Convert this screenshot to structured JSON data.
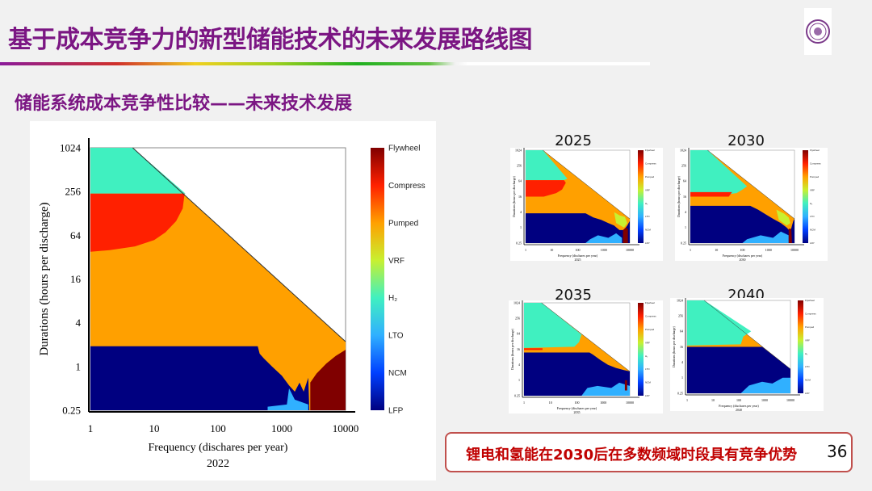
{
  "slide": {
    "title": "基于成本竞争力的新型储能技术的未来发展路线图",
    "subtitle": "储能系统成本竞争性比较——未来技术发展",
    "callout": "锂电和氢能在2030后在多数频域时段具有竞争优势",
    "page_number": "36",
    "title_color": "#7b1683",
    "callout_color": "#c00000"
  },
  "year_labels": [
    "2025",
    "2030",
    "2035",
    "2040"
  ],
  "legend": [
    {
      "label": "Flywheel",
      "color": "#800000"
    },
    {
      "label": "Compress",
      "color": "#ff2000"
    },
    {
      "label": "Pumped",
      "color": "#ffa000"
    },
    {
      "label": "VRF",
      "color": "#c8f030"
    },
    {
      "label": "H₂",
      "color": "#40f0c0"
    },
    {
      "label": "LTO",
      "color": "#30b0ff"
    },
    {
      "label": "NCM",
      "color": "#0040ff"
    },
    {
      "label": "LFP",
      "color": "#000080"
    }
  ],
  "chart_data": [
    {
      "type": "heatmap",
      "year": "2022",
      "xlabel": "Frequency (dischares per year)",
      "ylabel": "Durations (hours per discharge)",
      "xscale": "log",
      "yscale": "log2",
      "xlim": [
        1,
        10000
      ],
      "ylim": [
        0.25,
        1024
      ],
      "xticks": [
        "1",
        "10",
        "100",
        "1000",
        "10000"
      ],
      "yticks": [
        "1024",
        "256",
        "64",
        "16",
        "4",
        "1",
        "0.25"
      ],
      "regions": [
        {
          "tech": "Pumped",
          "points": [
            [
              1,
              1024
            ],
            [
              4.6,
              1024
            ],
            [
              10000,
              2.2
            ],
            [
              10000,
              0.25
            ],
            [
              1,
              0.25
            ]
          ]
        },
        {
          "tech": "H₂",
          "points": [
            [
              1,
              1024
            ],
            [
              4.6,
              1024
            ],
            [
              31,
              240
            ],
            [
              1,
              240
            ]
          ]
        },
        {
          "tech": "Compress",
          "points": [
            [
              1,
              240
            ],
            [
              30,
              240
            ],
            [
              28,
              150
            ],
            [
              22,
              100
            ],
            [
              15,
              70
            ],
            [
              10,
              55
            ],
            [
              5,
              45
            ],
            [
              2,
              40
            ],
            [
              1,
              38
            ]
          ]
        },
        {
          "tech": "LFP",
          "points": [
            [
              1,
              1.9
            ],
            [
              420,
              1.9
            ],
            [
              450,
              1.5
            ],
            [
              520,
              1.3
            ],
            [
              700,
              1.0
            ],
            [
              1000,
              0.75
            ],
            [
              1300,
              0.55
            ],
            [
              1600,
              0.45
            ],
            [
              1900,
              0.6
            ],
            [
              2200,
              0.45
            ],
            [
              2600,
              0.7
            ],
            [
              2700,
              0.25
            ],
            [
              1,
              0.25
            ]
          ]
        },
        {
          "tech": "LTO",
          "points": [
            [
              600,
              0.25
            ],
            [
              600,
              0.28
            ],
            [
              1200,
              0.3
            ],
            [
              1300,
              0.5
            ],
            [
              1600,
              0.35
            ],
            [
              2600,
              0.3
            ],
            [
              2600,
              0.25
            ]
          ]
        },
        {
          "tech": "Flywheel",
          "points": [
            [
              2800,
              0.25
            ],
            [
              2800,
              0.6
            ],
            [
              3500,
              0.8
            ],
            [
              5000,
              1.1
            ],
            [
              7000,
              1.4
            ],
            [
              10000,
              1.7
            ],
            [
              10000,
              0.25
            ]
          ]
        }
      ]
    },
    {
      "type": "heatmap",
      "year": "2025",
      "xlabel": "Frequency (dischares per year)",
      "ylabel": "Durations (hours per discharge)",
      "xscale": "log",
      "yscale": "log2",
      "xlim": [
        1,
        10000
      ],
      "ylim": [
        0.25,
        1024
      ],
      "xticks": [
        "1",
        "10",
        "100",
        "1000",
        "10000"
      ],
      "yticks": [
        "1024",
        "256",
        "64",
        "16",
        "4",
        "1",
        "0.25"
      ],
      "regions": [
        {
          "tech": "Pumped",
          "points": [
            [
              1,
              1024
            ],
            [
              4.6,
              1024
            ],
            [
              10000,
              2.2
            ],
            [
              10000,
              0.25
            ],
            [
              1,
              0.25
            ]
          ]
        },
        {
          "tech": "H₂",
          "points": [
            [
              1,
              1024
            ],
            [
              4.6,
              1024
            ],
            [
              40,
              80
            ],
            [
              30,
              70
            ],
            [
              1,
              70
            ]
          ]
        },
        {
          "tech": "Compress",
          "points": [
            [
              1,
              70
            ],
            [
              30,
              70
            ],
            [
              35,
              55
            ],
            [
              25,
              30
            ],
            [
              15,
              22
            ],
            [
              5,
              16
            ],
            [
              1,
              16
            ]
          ]
        },
        {
          "tech": "VRF",
          "points": [
            [
              2500,
              4
            ],
            [
              4000,
              3
            ],
            [
              6500,
              2.6
            ],
            [
              8000,
              1.5
            ],
            [
              6000,
              1
            ],
            [
              3000,
              1.5
            ]
          ]
        },
        {
          "tech": "LFP",
          "points": [
            [
              1,
              3.6
            ],
            [
              200,
              3.6
            ],
            [
              400,
              2.5
            ],
            [
              800,
              2
            ],
            [
              1500,
              1.5
            ],
            [
              2500,
              1.2
            ],
            [
              4000,
              0.8
            ],
            [
              6000,
              0.8
            ],
            [
              8000,
              1.2
            ],
            [
              9000,
              1.5
            ],
            [
              10000,
              1.8
            ],
            [
              10000,
              0.25
            ],
            [
              1,
              0.25
            ]
          ]
        },
        {
          "tech": "LTO",
          "points": [
            [
              200,
              0.25
            ],
            [
              300,
              0.35
            ],
            [
              600,
              0.5
            ],
            [
              1500,
              0.4
            ],
            [
              3000,
              0.6
            ],
            [
              5000,
              0.4
            ],
            [
              5000,
              0.25
            ]
          ]
        },
        {
          "tech": "Flywheel",
          "points": [
            [
              5500,
              0.25
            ],
            [
              5500,
              0.8
            ],
            [
              7000,
              1.0
            ],
            [
              8500,
              0.9
            ],
            [
              8500,
              0.25
            ]
          ]
        }
      ]
    },
    {
      "type": "heatmap",
      "year": "2030",
      "xlabel": "Frequency (dischares per year)",
      "ylabel": "Durations (hours per discharge)",
      "xscale": "log",
      "yscale": "log2",
      "xlim": [
        1,
        10000
      ],
      "ylim": [
        0.25,
        1024
      ],
      "xticks": [
        "1",
        "10",
        "100",
        "1000",
        "10000"
      ],
      "yticks": [
        "1024",
        "256",
        "64",
        "16",
        "4",
        "1",
        "0.25"
      ],
      "regions": [
        {
          "tech": "Pumped",
          "points": [
            [
              1,
              1024
            ],
            [
              4.6,
              1024
            ],
            [
              10000,
              2.2
            ],
            [
              10000,
              0.25
            ],
            [
              1,
              0.25
            ]
          ]
        },
        {
          "tech": "H₂",
          "points": [
            [
              1,
              1024
            ],
            [
              4.6,
              1024
            ],
            [
              150,
              40
            ],
            [
              100,
              30
            ],
            [
              60,
              22
            ],
            [
              30,
              20
            ],
            [
              1,
              20
            ]
          ]
        },
        {
          "tech": "Compress",
          "points": [
            [
              1,
              24
            ],
            [
              40,
              24
            ],
            [
              30,
              16
            ],
            [
              1,
              16
            ]
          ]
        },
        {
          "tech": "VRF",
          "points": [
            [
              2000,
              5
            ],
            [
              4000,
              3.5
            ],
            [
              6000,
              2.5
            ],
            [
              7000,
              1.5
            ],
            [
              5000,
              1.2
            ],
            [
              2500,
              2
            ]
          ]
        },
        {
          "tech": "LFP",
          "points": [
            [
              1,
              7
            ],
            [
              200,
              7
            ],
            [
              400,
              5
            ],
            [
              900,
              3
            ],
            [
              1500,
              2.2
            ],
            [
              3000,
              1.5
            ],
            [
              5000,
              1
            ],
            [
              7000,
              0.7
            ],
            [
              8000,
              1.2
            ],
            [
              9000,
              1.8
            ],
            [
              10000,
              2.2
            ],
            [
              10000,
              0.25
            ],
            [
              1,
              0.25
            ]
          ]
        },
        {
          "tech": "LTO",
          "points": [
            [
              100,
              0.25
            ],
            [
              150,
              0.35
            ],
            [
              500,
              0.5
            ],
            [
              1500,
              0.4
            ],
            [
              3000,
              0.7
            ],
            [
              6000,
              0.5
            ],
            [
              6000,
              0.25
            ]
          ]
        },
        {
          "tech": "Flywheel",
          "points": [
            [
              6000,
              0.25
            ],
            [
              6000,
              0.9
            ],
            [
              7500,
              0.9
            ],
            [
              8000,
              0.25
            ]
          ]
        }
      ]
    },
    {
      "type": "heatmap",
      "year": "2035",
      "xlabel": "Frequency (dischares per year)",
      "ylabel": "Durations (hours per discharge)",
      "xscale": "log",
      "yscale": "log2",
      "xlim": [
        1,
        10000
      ],
      "ylim": [
        0.25,
        1024
      ],
      "xticks": [
        "1",
        "10",
        "100",
        "1000",
        "10000"
      ],
      "yticks": [
        "1024",
        "256",
        "64",
        "16",
        "4",
        "1",
        "0.25"
      ],
      "regions": [
        {
          "tech": "Pumped",
          "points": [
            [
              1,
              1024
            ],
            [
              4.6,
              1024
            ],
            [
              10000,
              2.2
            ],
            [
              10000,
              0.25
            ],
            [
              1,
              0.25
            ]
          ]
        },
        {
          "tech": "H₂",
          "points": [
            [
              1,
              1024
            ],
            [
              4.6,
              1024
            ],
            [
              150,
              60
            ],
            [
              120,
              30
            ],
            [
              80,
              20
            ],
            [
              1,
              18
            ]
          ]
        },
        {
          "tech": "Compress",
          "points": [
            [
              1,
              17.5
            ],
            [
              5,
              17.5
            ],
            [
              5,
              15
            ],
            [
              1,
              15
            ]
          ]
        },
        {
          "tech": "LFP",
          "points": [
            [
              1,
              12
            ],
            [
              300,
              12
            ],
            [
              400,
              10
            ],
            [
              800,
              6
            ],
            [
              1500,
              4
            ],
            [
              3000,
              3
            ],
            [
              6000,
              2.5
            ],
            [
              10000,
              2.2
            ],
            [
              10000,
              0.25
            ],
            [
              1,
              0.25
            ]
          ]
        },
        {
          "tech": "LTO",
          "points": [
            [
              150,
              0.25
            ],
            [
              250,
              0.5
            ],
            [
              600,
              0.6
            ],
            [
              2000,
              0.5
            ],
            [
              4000,
              0.8
            ],
            [
              10000,
              0.6
            ],
            [
              10000,
              0.25
            ]
          ]
        },
        {
          "tech": "Flywheel",
          "points": [
            [
              6500,
              0.4
            ],
            [
              6500,
              1.0
            ],
            [
              8000,
              1.0
            ],
            [
              8000,
              0.4
            ]
          ]
        }
      ]
    },
    {
      "type": "heatmap",
      "year": "2040",
      "xlabel": "Frequency (dischares per year)",
      "ylabel": "Durations (hours per discharge)",
      "xscale": "log",
      "yscale": "log2",
      "xlim": [
        1,
        10000
      ],
      "ylim": [
        0.25,
        1024
      ],
      "xticks": [
        "1",
        "10",
        "100",
        "1000",
        "10000"
      ],
      "yticks": [
        "1024",
        "256",
        "64",
        "16",
        "4",
        "1",
        "0.25"
      ],
      "regions": [
        {
          "tech": "Pumped",
          "points": [
            [
              1,
              1024
            ],
            [
              4.6,
              1024
            ],
            [
              10000,
              2.2
            ],
            [
              10000,
              0.25
            ],
            [
              1,
              0.25
            ]
          ]
        },
        {
          "tech": "H₂",
          "points": [
            [
              1,
              1024
            ],
            [
              4.6,
              1024
            ],
            [
              300,
              64
            ],
            [
              150,
              40
            ],
            [
              120,
              20
            ],
            [
              1,
              18
            ]
          ]
        },
        {
          "tech": "LFP",
          "points": [
            [
              1,
              16
            ],
            [
              800,
              16
            ],
            [
              10000,
              2.2
            ],
            [
              10000,
              0.25
            ],
            [
              1,
              0.25
            ]
          ]
        },
        {
          "tech": "LTO",
          "points": [
            [
              120,
              0.25
            ],
            [
              250,
              0.5
            ],
            [
              800,
              0.7
            ],
            [
              2000,
              0.6
            ],
            [
              5000,
              1
            ],
            [
              10000,
              1
            ],
            [
              10000,
              0.25
            ]
          ]
        }
      ]
    }
  ]
}
